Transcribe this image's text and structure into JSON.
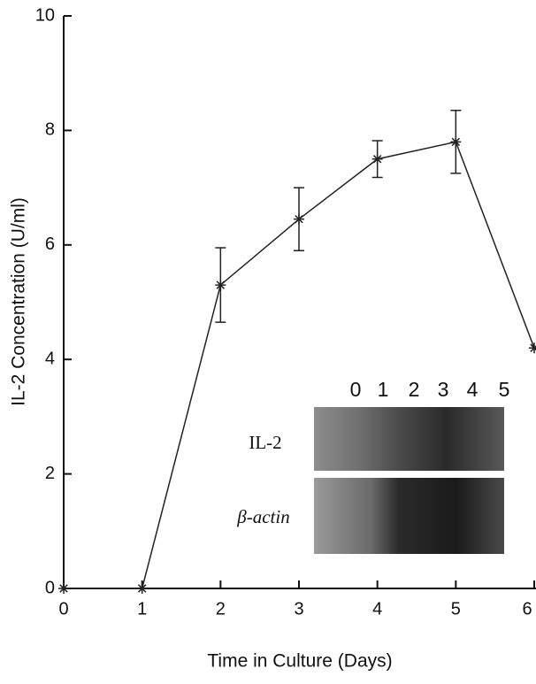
{
  "chart_data": {
    "type": "line",
    "xlabel": "Time in Culture (Days)",
    "ylabel": "IL-2 Concentration (U/ml)",
    "x": [
      0,
      1,
      2,
      3,
      4,
      5,
      6
    ],
    "series": [
      {
        "color": "#222222",
        "values": [
          0,
          0,
          5.3,
          6.45,
          7.5,
          7.8,
          4.2
        ],
        "errors": [
          null,
          null,
          0.65,
          0.55,
          0.32,
          0.55,
          null
        ]
      }
    ],
    "xlim": [
      0,
      6
    ],
    "xticks": [
      0,
      1,
      2,
      3,
      4,
      5,
      6
    ],
    "ylim": [
      0,
      10
    ],
    "yticks": [
      0,
      2,
      4,
      6,
      8,
      10
    ],
    "inset": {
      "lanes": [
        "0",
        "1",
        "2",
        "3",
        "4",
        "5"
      ],
      "rows": [
        "IL-2",
        "β-actin"
      ]
    }
  }
}
